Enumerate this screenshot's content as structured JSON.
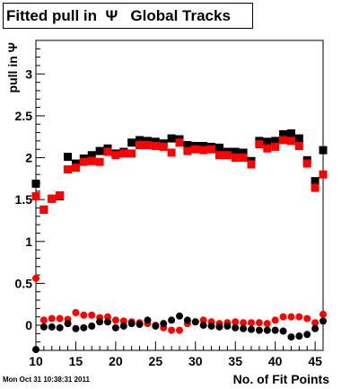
{
  "title": "Fitted pull in  Ψ   Global Tracks",
  "timestamp": "Mon Oct 31 10:38:31 2011",
  "chart_data": {
    "type": "scatter",
    "title": "Fitted pull in  Ψ   Global Tracks",
    "xlabel": "No. of Fit Points",
    "ylabel": "pull in Ψ",
    "xlim": [
      10,
      46
    ],
    "ylim": [
      -0.3,
      3.4
    ],
    "x_ticks": [
      10,
      15,
      20,
      25,
      30,
      35,
      40,
      45
    ],
    "y_ticks": [
      0,
      0.5,
      1,
      1.5,
      2,
      2.5,
      3
    ],
    "x_tick_labels": [
      "10",
      "15",
      "20",
      "25",
      "30",
      "35",
      "40",
      "45"
    ],
    "y_tick_labels": [
      "0",
      "0.5",
      "1",
      "1.5",
      "2",
      "2.5",
      "3"
    ],
    "grid": false,
    "series": [
      {
        "role": "sigma",
        "color": "#000000",
        "marker": "square",
        "x": [
          10,
          11,
          12,
          13,
          14,
          15,
          16,
          17,
          18,
          19,
          20,
          21,
          22,
          23,
          24,
          25,
          26,
          27,
          28,
          29,
          30,
          31,
          32,
          33,
          34,
          35,
          36,
          37,
          38,
          39,
          40,
          41,
          42,
          43,
          44,
          45,
          46
        ],
        "y": [
          1.69,
          1.38,
          1.51,
          1.54,
          2.01,
          1.93,
          1.99,
          2.03,
          2.08,
          2.11,
          2.05,
          2.07,
          2.18,
          2.21,
          2.2,
          2.19,
          2.17,
          2.23,
          2.22,
          2.15,
          2.14,
          2.14,
          2.13,
          2.12,
          2.07,
          2.07,
          2.06,
          1.96,
          2.2,
          2.19,
          2.2,
          2.28,
          2.29,
          2.23,
          1.97,
          1.72,
          2.09
        ]
      },
      {
        "role": "sigma",
        "color": "#ff0000",
        "marker": "square",
        "x": [
          10,
          11,
          12,
          13,
          14,
          15,
          16,
          17,
          18,
          19,
          20,
          21,
          22,
          23,
          24,
          25,
          26,
          27,
          28,
          29,
          30,
          31,
          32,
          33,
          34,
          35,
          36,
          37,
          38,
          39,
          40,
          41,
          42,
          43,
          44,
          45,
          46
        ],
        "y": [
          1.54,
          1.38,
          1.51,
          1.55,
          1.86,
          1.88,
          1.95,
          1.96,
          1.95,
          2.07,
          2.03,
          2.05,
          2.05,
          2.15,
          2.15,
          2.14,
          2.13,
          2.06,
          2.18,
          2.08,
          2.1,
          2.09,
          2.1,
          2.03,
          2.03,
          2.0,
          2.0,
          1.92,
          2.16,
          2.11,
          2.13,
          2.21,
          2.2,
          2.14,
          1.93,
          1.64,
          1.8
        ]
      },
      {
        "role": "mean",
        "color": "#ff0000",
        "marker": "circle",
        "x": [
          10,
          11,
          12,
          13,
          14,
          15,
          16,
          17,
          18,
          19,
          20,
          21,
          22,
          23,
          24,
          25,
          26,
          27,
          28,
          29,
          30,
          31,
          32,
          33,
          34,
          35,
          36,
          37,
          38,
          39,
          40,
          41,
          42,
          43,
          44,
          45,
          46
        ],
        "y": [
          0.56,
          0.06,
          0.08,
          0.08,
          0.07,
          0.15,
          0.12,
          0.12,
          0.09,
          0.1,
          0.06,
          0.05,
          0.04,
          0.03,
          0.02,
          0.0,
          -0.03,
          -0.06,
          -0.06,
          0.02,
          0.04,
          0.06,
          0.04,
          0.02,
          0.03,
          0.04,
          0.03,
          0.03,
          0.03,
          0.02,
          0.06,
          0.1,
          0.1,
          0.1,
          0.08,
          0.03,
          0.13
        ]
      },
      {
        "role": "mean",
        "color": "#000000",
        "marker": "circle",
        "x": [
          10,
          11,
          12,
          13,
          14,
          15,
          16,
          17,
          18,
          19,
          20,
          21,
          22,
          23,
          24,
          25,
          26,
          27,
          28,
          29,
          30,
          31,
          32,
          33,
          34,
          35,
          36,
          37,
          38,
          39,
          40,
          41,
          42,
          43,
          44,
          45,
          46
        ],
        "y": [
          -0.29,
          -0.02,
          -0.02,
          -0.03,
          0.02,
          -0.04,
          -0.03,
          -0.01,
          0.04,
          0.04,
          -0.03,
          -0.01,
          0.02,
          0.01,
          0.06,
          -0.01,
          0.02,
          0.06,
          0.11,
          0.06,
          0.04,
          0.0,
          -0.01,
          -0.02,
          -0.01,
          -0.03,
          -0.04,
          -0.05,
          -0.06,
          -0.06,
          -0.06,
          -0.07,
          -0.14,
          -0.13,
          -0.11,
          -0.04,
          0.05
        ]
      }
    ]
  }
}
